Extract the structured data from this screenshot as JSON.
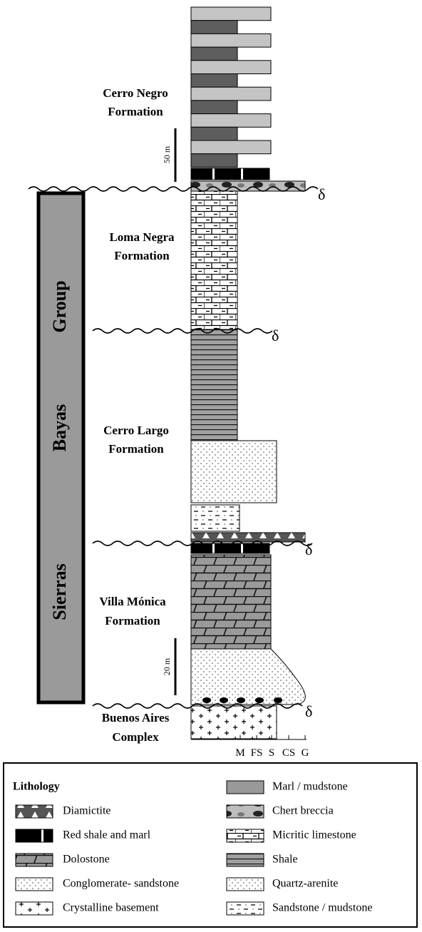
{
  "formations": [
    {
      "line1": "Cerro Negro",
      "line2": "Formation"
    },
    {
      "line1": "Loma Negra",
      "line2": "Formation"
    },
    {
      "line1": "Cerro Largo",
      "line2": "Formation"
    },
    {
      "line1": "Villa Mónica",
      "line2": "Formation"
    },
    {
      "line1": "Buenos Aires",
      "line2": "Complex"
    }
  ],
  "group": [
    "Group",
    "Bayas",
    "Sierras"
  ],
  "scales": [
    "50 m",
    "20 m"
  ],
  "unconformities": [
    "δ",
    "δ",
    "δ",
    "δ"
  ],
  "grain_size": [
    "M",
    "FS",
    "S",
    "CS",
    "G"
  ],
  "legend": {
    "title": "Lithology",
    "left": [
      "Diamictite",
      "Red shale and marl",
      "Dolostone",
      "Conglomerate- sandstone",
      "Crystalline basement"
    ],
    "right": [
      "Marl / mudstone",
      "Chert breccia",
      "Micritic limestone",
      "Shale",
      "Quartz-arenite",
      "Sandstone / mudstone"
    ]
  }
}
